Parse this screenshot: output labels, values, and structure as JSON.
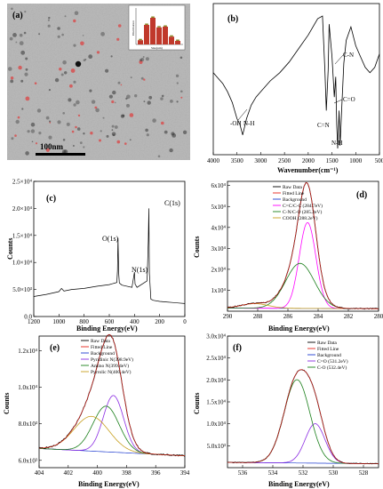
{
  "figure": {
    "panels": [
      "(a)",
      "(b)",
      "(c)",
      "(d)",
      "(e)",
      "(f)"
    ],
    "scale_bar": "100nm",
    "inset": {
      "ylabel": "Distribution",
      "xlabel": "Size(nm)"
    }
  },
  "colors": {
    "black": "#000000",
    "red": "#e8231b",
    "magenta": "#ff00ff",
    "blue": "#1f3cd0",
    "green": "#1a7f1a",
    "olive": "#c8a020",
    "purple": "#8a2be2",
    "bar_red": "#c0392b",
    "bar_olive": "#8a8a2a"
  },
  "chart_data": [
    {
      "panel": "(a)",
      "type": "bar",
      "title": "",
      "categories": [
        "1",
        "2",
        "3",
        "4",
        "5",
        "6",
        "7"
      ],
      "series": [
        {
          "values": [
            0.12,
            0.55,
            0.75,
            0.48,
            0.5,
            0.22,
            0.1
          ]
        }
      ],
      "xlabel": "Size(nm)",
      "ylabel": "Distribution"
    },
    {
      "panel": "(b)",
      "type": "line",
      "xlabel": "Wavenumber(cm⁻¹)",
      "ylabel": "",
      "xlim": [
        4000,
        500
      ],
      "xticks": [
        4000,
        3500,
        3000,
        2500,
        2000,
        1500,
        1000,
        500
      ],
      "x": [
        4000,
        3900,
        3800,
        3700,
        3600,
        3500,
        3440,
        3380,
        3300,
        3200,
        3100,
        3000,
        2900,
        2800,
        2600,
        2400,
        2200,
        2000,
        1800,
        1700,
        1650,
        1620,
        1580,
        1560,
        1500,
        1450,
        1420,
        1400,
        1380,
        1350,
        1330,
        1300,
        1250,
        1200,
        1100,
        1000,
        900,
        800,
        700,
        600,
        500
      ],
      "y": [
        0.58,
        0.54,
        0.5,
        0.44,
        0.36,
        0.24,
        0.2,
        0.12,
        0.24,
        0.34,
        0.4,
        0.44,
        0.48,
        0.52,
        0.58,
        0.66,
        0.76,
        0.86,
        0.98,
        1.0,
        0.6,
        0.3,
        0.6,
        0.94,
        0.7,
        0.4,
        0.55,
        0.2,
        0.02,
        0.3,
        0.04,
        0.28,
        0.65,
        0.82,
        0.92,
        0.78,
        0.7,
        0.62,
        0.58,
        0.62,
        0.72
      ],
      "annotations": [
        "-OH",
        "N-H",
        "C=N",
        "C=O",
        "C-N",
        "N-H"
      ]
    },
    {
      "panel": "(c)",
      "type": "line",
      "xlabel": "Binding Energy(eV)",
      "ylabel": "Counts",
      "xlim": [
        1200,
        0
      ],
      "ylim": [
        0,
        25000
      ],
      "xticks": [
        1200,
        1000,
        800,
        600,
        400,
        200,
        0
      ],
      "yticks": [
        "0.0",
        "5.0×10³",
        "1.0×10⁴",
        "1.5×10⁴",
        "2.0×10⁴",
        "2.5×10⁴"
      ],
      "x": [
        1200,
        1100,
        1000,
        980,
        960,
        900,
        800,
        700,
        600,
        540,
        535,
        531,
        525,
        520,
        500,
        420,
        405,
        400,
        395,
        380,
        300,
        290,
        286,
        282,
        270,
        250,
        200,
        150,
        100,
        50,
        0
      ],
      "y": [
        3700,
        4100,
        4600,
        5200,
        4700,
        5000,
        5200,
        5600,
        5900,
        6300,
        8500,
        14500,
        8000,
        6200,
        5800,
        5400,
        7500,
        8200,
        6000,
        5400,
        6600,
        14000,
        20000,
        8000,
        3200,
        3000,
        2800,
        2700,
        2600,
        2500,
        2400
      ],
      "annotations": [
        "C(1s)",
        "O(1s)",
        "N(1s)"
      ]
    },
    {
      "panel": "(d)",
      "type": "line",
      "xlabel": "Binding Energy(eV)",
      "ylabel": "Counts",
      "xlim": [
        290,
        280
      ],
      "ylim": [
        0,
        62000
      ],
      "xticks": [
        290,
        288,
        286,
        284,
        282,
        280
      ],
      "yticks": [
        "1x10⁴",
        "2x10⁴",
        "3x10⁴",
        "4x10⁴",
        "5x10⁴",
        "6x10⁴"
      ],
      "series": [
        {
          "name": "Raw Data"
        },
        {
          "name": "Fitted Line"
        },
        {
          "name": "Background"
        },
        {
          "name": "C=C/C-C (284.7eV)",
          "center": 284.7,
          "height": 41000,
          "sigma": 0.55
        },
        {
          "name": "C-N/C-O (285.2eV)",
          "center": 285.2,
          "height": 21500,
          "sigma": 0.95
        },
        {
          "name": "COOH (288.2eV)",
          "center": 288.2,
          "height": 2200,
          "sigma": 0.9
        }
      ]
    },
    {
      "panel": "(e)",
      "type": "line",
      "xlabel": "Binding Energy(eV)",
      "ylabel": "Counts",
      "xlim": [
        404,
        394
      ],
      "ylim": [
        5600,
        12800
      ],
      "xticks": [
        404,
        402,
        400,
        398,
        396,
        394
      ],
      "yticks": [
        "6.0x10³",
        "8.0x10³",
        "1.0x10⁴",
        "1.2x10⁴"
      ],
      "series": [
        {
          "name": "Raw Data"
        },
        {
          "name": "Fitted Line"
        },
        {
          "name": "Background"
        },
        {
          "name": "Pyridinic N(398.9eV)",
          "center": 398.9,
          "height": 3100,
          "sigma": 0.7
        },
        {
          "name": "Amino N(399.4eV)",
          "center": 399.4,
          "height": 2500,
          "sigma": 0.9
        },
        {
          "name": "Pyrrolic N(400.4eV)",
          "center": 400.4,
          "height": 1900,
          "sigma": 1.2
        }
      ]
    },
    {
      "panel": "(f)",
      "type": "line",
      "xlabel": "Binding Energy(eV)",
      "ylabel": "Counts",
      "xlim": [
        537,
        527
      ],
      "ylim": [
        0,
        30000
      ],
      "xticks": [
        536,
        534,
        532,
        530,
        528
      ],
      "yticks": [
        "5.0x10³",
        "1.0x10⁴",
        "1.5x10⁴",
        "2.0x10⁴",
        "2.5x10⁴",
        "3.0x10⁴"
      ],
      "series": [
        {
          "name": "Raw Data"
        },
        {
          "name": "Fitted Line"
        },
        {
          "name": "Background"
        },
        {
          "name": "C=O (531.2eV)",
          "center": 531.2,
          "height": 9000,
          "sigma": 0.65
        },
        {
          "name": "C-O (532.4eV)",
          "center": 532.4,
          "height": 19000,
          "sigma": 0.85
        }
      ]
    }
  ]
}
